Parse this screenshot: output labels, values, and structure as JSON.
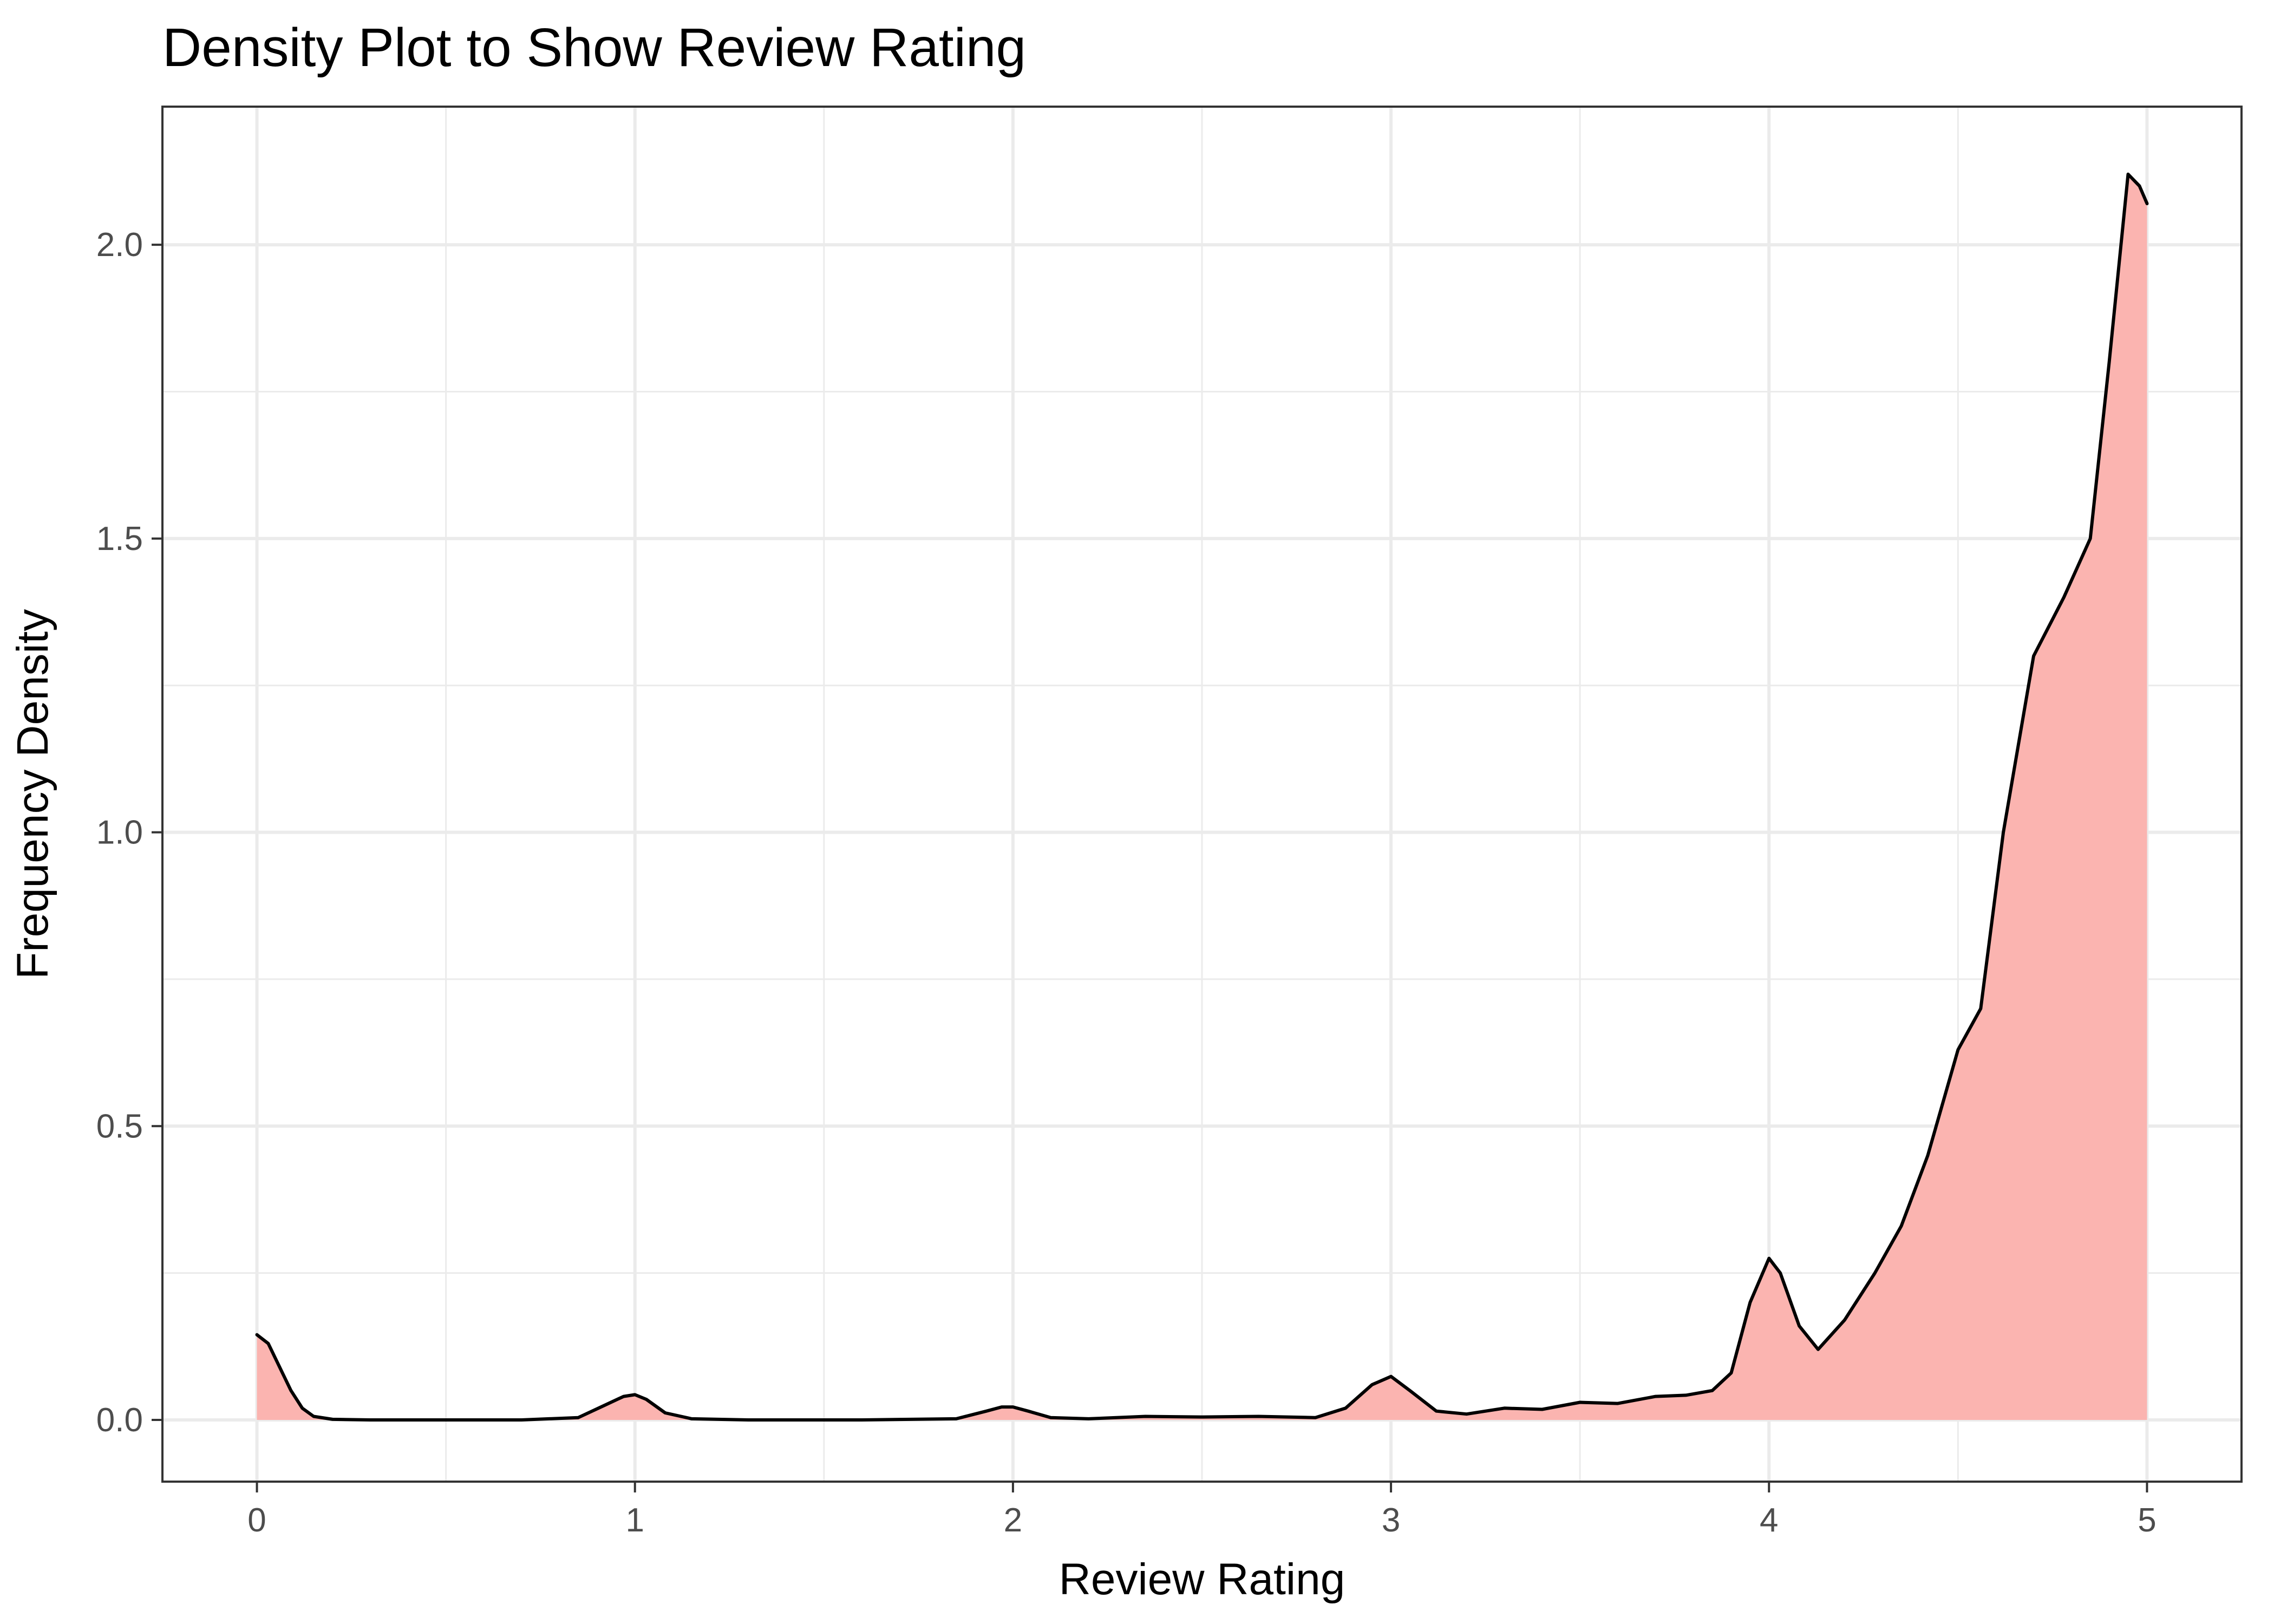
{
  "chart_data": {
    "type": "area",
    "title": "Density Plot to Show Review Rating",
    "xlabel": "Review Rating",
    "ylabel": "Frequency Density",
    "xlim": [
      -0.25,
      5.25
    ],
    "ylim": [
      -0.105,
      2.235
    ],
    "x_ticks": [
      0,
      1,
      2,
      3,
      4,
      5
    ],
    "x_tick_labels": [
      "0",
      "1",
      "2",
      "3",
      "4",
      "5"
    ],
    "y_ticks": [
      0.0,
      0.5,
      1.0,
      1.5,
      2.0
    ],
    "y_tick_labels": [
      "0.0",
      "0.5",
      "1.0",
      "1.5",
      "2.0"
    ],
    "grid": true,
    "legend": "none",
    "colors": {
      "fill": "#fbb4b0",
      "line": "#000000",
      "grid": "#ebebeb",
      "panel_border": "#333333"
    },
    "series": [
      {
        "x": [
          0.0,
          0.03,
          0.06,
          0.09,
          0.12,
          0.15,
          0.2,
          0.3,
          0.5,
          0.7,
          0.85,
          0.92,
          0.97,
          1.0,
          1.03,
          1.08,
          1.15,
          1.3,
          1.6,
          1.85,
          1.93,
          1.97,
          2.0,
          2.04,
          2.1,
          2.2,
          2.35,
          2.5,
          2.65,
          2.8,
          2.88,
          2.95,
          3.0,
          3.05,
          3.12,
          3.2,
          3.3,
          3.4,
          3.5,
          3.6,
          3.7,
          3.78,
          3.85,
          3.9,
          3.95,
          4.0,
          4.03,
          4.08,
          4.13,
          4.2,
          4.28,
          4.35,
          4.42,
          4.5,
          4.56,
          4.62,
          4.7,
          4.78,
          4.85,
          4.9,
          4.95,
          4.98,
          5.0
        ],
        "y": [
          0.145,
          0.13,
          0.09,
          0.05,
          0.02,
          0.006,
          0.001,
          0.0,
          0.0,
          0.0,
          0.004,
          0.025,
          0.04,
          0.043,
          0.035,
          0.012,
          0.002,
          0.0,
          0.0,
          0.002,
          0.015,
          0.022,
          0.022,
          0.015,
          0.004,
          0.002,
          0.006,
          0.005,
          0.006,
          0.004,
          0.02,
          0.06,
          0.074,
          0.05,
          0.015,
          0.01,
          0.02,
          0.018,
          0.03,
          0.028,
          0.04,
          0.042,
          0.05,
          0.08,
          0.2,
          0.275,
          0.25,
          0.16,
          0.12,
          0.17,
          0.25,
          0.33,
          0.45,
          0.63,
          0.7,
          1.0,
          1.3,
          1.4,
          1.5,
          1.8,
          2.12,
          2.1,
          2.07
        ]
      }
    ]
  }
}
